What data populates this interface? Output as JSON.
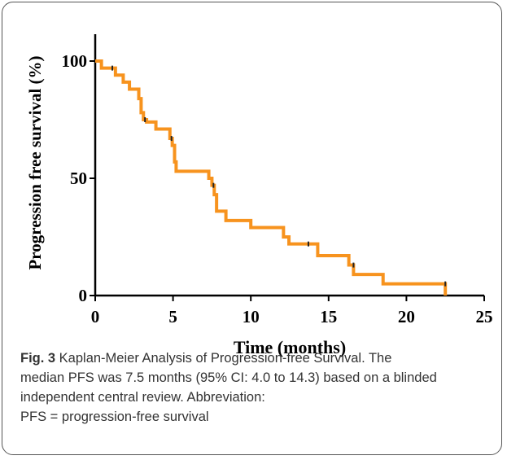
{
  "chart_data": {
    "type": "line",
    "title": "",
    "xlabel": "Time (months)",
    "ylabel": "Progression free  survival (%)",
    "xlim": [
      0,
      25
    ],
    "ylim": [
      0,
      100
    ],
    "xticks": [
      "0",
      "5",
      "10",
      "15",
      "20",
      "25"
    ],
    "yticks": [
      "0",
      "50",
      "100"
    ],
    "grid": false,
    "legend": "none",
    "series": [
      {
        "color": "#f7931e",
        "step_points": [
          [
            0,
            100
          ],
          [
            0.4,
            97
          ],
          [
            1.3,
            94
          ],
          [
            1.8,
            91
          ],
          [
            2.2,
            88
          ],
          [
            2.8,
            84
          ],
          [
            2.95,
            78
          ],
          [
            3.1,
            75
          ],
          [
            3.3,
            74
          ],
          [
            3.9,
            71
          ],
          [
            4.8,
            67
          ],
          [
            4.95,
            64
          ],
          [
            5.1,
            57
          ],
          [
            5.2,
            53
          ],
          [
            7.3,
            50
          ],
          [
            7.5,
            47
          ],
          [
            7.65,
            43
          ],
          [
            7.8,
            36
          ],
          [
            8.4,
            32
          ],
          [
            10,
            29
          ],
          [
            12.1,
            25
          ],
          [
            12.45,
            22
          ],
          [
            14.3,
            17
          ],
          [
            16.3,
            13
          ],
          [
            16.6,
            9
          ],
          [
            18.5,
            5
          ],
          [
            22.5,
            5
          ],
          [
            22.5,
            0
          ]
        ],
        "censor_marks": [
          [
            1.1,
            97
          ],
          [
            3.2,
            75
          ],
          [
            4.9,
            67
          ],
          [
            7.6,
            47
          ],
          [
            13.7,
            22
          ],
          [
            16.6,
            13
          ],
          [
            22.5,
            5
          ]
        ]
      }
    ]
  },
  "caption": {
    "fig_label": "Fig. 3",
    "lines": [
      " Kaplan-Meier Analysis of Progression-free Survival. The",
      "median PFS was 7.5 months (95% CI: 4.0 to 14.3) based on a blinded",
      "independent central review. Abbreviation:",
      "PFS = progression-free survival"
    ]
  }
}
